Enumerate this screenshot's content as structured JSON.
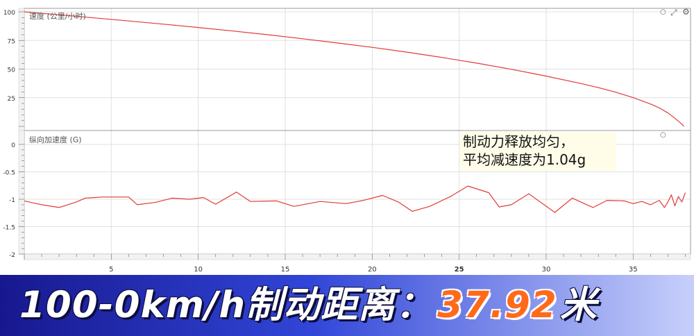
{
  "chart_data": [
    {
      "type": "line",
      "title": "速度 (公里/小时)",
      "ylim": [
        0,
        100
      ],
      "yticks": [
        100,
        75,
        50,
        25
      ],
      "xlim": [
        0,
        38.3
      ],
      "grid": true,
      "series": [
        {
          "color": "#e03a3a",
          "x": [
            0,
            2,
            4,
            6,
            8,
            10,
            12,
            14,
            16,
            18,
            20,
            22,
            24,
            25,
            26,
            28,
            30,
            32,
            33,
            34,
            35,
            36,
            36.5,
            37,
            37.3,
            37.6,
            37.8,
            37.92
          ],
          "y": [
            100,
            97.4,
            94.7,
            92,
            89.2,
            86.3,
            83.2,
            80,
            76.5,
            72.8,
            69,
            64.8,
            60.2,
            57.7,
            55.2,
            49.8,
            43.9,
            37.4,
            33.8,
            29.8,
            25.1,
            19.5,
            16.1,
            11.7,
            8.3,
            4.5,
            2,
            0
          ]
        }
      ]
    },
    {
      "type": "line",
      "title": "纵向加速度 (G)",
      "ylim": [
        -2,
        0
      ],
      "yticks": [
        0,
        -0.5,
        -1,
        -1.5,
        -2
      ],
      "xlim": [
        0,
        38.3
      ],
      "xticks": [
        5,
        10,
        15,
        20,
        25,
        30,
        35
      ],
      "grid": true,
      "series": [
        {
          "color": "#e03a3a",
          "x": [
            0,
            1,
            2,
            3,
            3.5,
            4,
            4.5,
            5,
            6,
            6.5,
            7.5,
            8.5,
            9.5,
            10.3,
            11,
            12.2,
            13,
            14.5,
            15.5,
            17,
            18.5,
            19.5,
            20.6,
            21.5,
            22.3,
            23.3,
            24.5,
            25.5,
            26.7,
            27.3,
            28,
            29,
            30.5,
            31.5,
            32.7,
            33.5,
            34.5,
            35,
            35.5,
            36,
            36.5,
            36.8,
            37,
            37.2,
            37.4,
            37.6,
            37.8,
            38
          ],
          "y": [
            -1.03,
            -1.1,
            -1.15,
            -1.05,
            -0.98,
            -0.97,
            -0.96,
            -0.96,
            -0.96,
            -1.1,
            -1.06,
            -0.98,
            -1.0,
            -0.97,
            -1.09,
            -0.87,
            -1.04,
            -1.03,
            -1.13,
            -1.04,
            -1.08,
            -1.02,
            -0.93,
            -1.05,
            -1.22,
            -1.13,
            -0.95,
            -0.76,
            -0.88,
            -1.14,
            -1.1,
            -0.9,
            -1.24,
            -0.98,
            -1.15,
            -1.02,
            -1.03,
            -1.08,
            -1.04,
            -1.1,
            -1.02,
            -1.15,
            -1.05,
            -0.92,
            -1.12,
            -0.95,
            -1.05,
            -0.88
          ]
        }
      ]
    }
  ],
  "annotation": {
    "line1": "制动力释放均匀，",
    "line2": "平均减速度为1.04g"
  },
  "banner": {
    "prefix": "100-0km/h制动距离：",
    "value": "37.92",
    "unit": "米"
  },
  "colors": {
    "line": "#e03a3a",
    "grid": "#e0e0e0",
    "banner_value": "#ff6a1a"
  }
}
